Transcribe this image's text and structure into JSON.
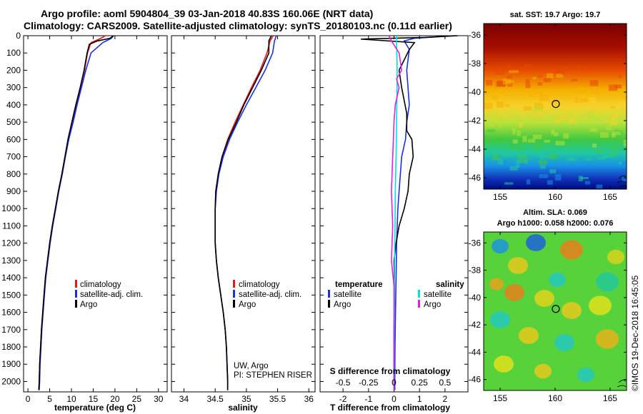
{
  "figure": {
    "title_line1": "Argo profile: aoml 5904804_39 03-Jan-2018 40.83S 160.06E (NRT data)",
    "title_line2": "Climatology: CARS2009. Satellite-adjusted climatology: synTS_20180103.nc (0.11d earlier)",
    "credit_line1": "UW, Argo",
    "credit_line2": "PI: STEPHEN RISER",
    "footer_stamp": "©IMOS 19-Dec-2018 16:45:05"
  },
  "colors": {
    "climatology": "#e81818",
    "satellite": "#1a2ee6",
    "argo": "#000000",
    "sat_salinity": "#00e0e0",
    "argo_salinity": "#e020e0"
  },
  "chart_data": [
    {
      "id": "temperature",
      "type": "line",
      "title": "",
      "xlabel": "temperature (deg C)",
      "ylabel": "",
      "xlim": [
        -1,
        32
      ],
      "ylim": [
        2060,
        0
      ],
      "x_ticks": [
        0,
        5,
        10,
        15,
        20,
        25,
        30
      ],
      "y_ticks": [
        0,
        100,
        200,
        300,
        400,
        500,
        600,
        700,
        800,
        900,
        1000,
        1100,
        1200,
        1300,
        1400,
        1500,
        1600,
        1700,
        1800,
        1900,
        2000
      ],
      "legend": [
        "climatology",
        "satellite-adj. clim.",
        "Argo"
      ],
      "series": [
        {
          "name": "climatology",
          "color_key": "climatology",
          "points": [
            [
              17.8,
              0
            ],
            [
              16.8,
              15
            ],
            [
              14.5,
              40
            ],
            [
              13.7,
              100
            ],
            [
              13.0,
              200
            ],
            [
              12.1,
              300
            ],
            [
              11.1,
              400
            ],
            [
              10.3,
              500
            ],
            [
              9.3,
              600
            ],
            [
              8.5,
              700
            ],
            [
              7.8,
              800
            ],
            [
              7.0,
              900
            ],
            [
              6.3,
              1000
            ],
            [
              5.6,
              1100
            ],
            [
              5.0,
              1200
            ],
            [
              4.5,
              1300
            ],
            [
              4.0,
              1400
            ],
            [
              3.7,
              1500
            ],
            [
              3.4,
              1600
            ],
            [
              3.1,
              1700
            ],
            [
              2.9,
              1800
            ],
            [
              2.7,
              1900
            ],
            [
              2.6,
              2000
            ],
            [
              2.5,
              2050
            ]
          ]
        },
        {
          "name": "satellite-adj. clim.",
          "color_key": "satellite",
          "points": [
            [
              19.7,
              0
            ],
            [
              19.2,
              15
            ],
            [
              17.2,
              40
            ],
            [
              14.5,
              100
            ],
            [
              13.3,
              200
            ],
            [
              12.3,
              300
            ],
            [
              11.3,
              400
            ],
            [
              10.4,
              500
            ],
            [
              9.4,
              600
            ],
            [
              8.6,
              700
            ],
            [
              7.9,
              800
            ],
            [
              7.1,
              900
            ],
            [
              6.4,
              1000
            ],
            [
              5.7,
              1100
            ],
            [
              5.1,
              1200
            ],
            [
              4.6,
              1300
            ],
            [
              4.1,
              1400
            ],
            [
              3.8,
              1500
            ],
            [
              3.5,
              1600
            ],
            [
              3.2,
              1700
            ],
            [
              3.0,
              1800
            ],
            [
              2.8,
              1900
            ],
            [
              2.7,
              2000
            ],
            [
              2.6,
              2050
            ]
          ]
        },
        {
          "name": "Argo",
          "color_key": "argo",
          "points": [
            [
              19.6,
              0
            ],
            [
              18.9,
              15
            ],
            [
              16.0,
              30
            ],
            [
              14.1,
              50
            ],
            [
              13.6,
              100
            ],
            [
              12.9,
              200
            ],
            [
              12.0,
              300
            ],
            [
              11.0,
              400
            ],
            [
              10.1,
              500
            ],
            [
              9.2,
              600
            ],
            [
              8.5,
              700
            ],
            [
              7.8,
              800
            ],
            [
              7.0,
              900
            ],
            [
              6.3,
              1000
            ],
            [
              5.6,
              1100
            ],
            [
              5.0,
              1200
            ],
            [
              4.5,
              1300
            ],
            [
              4.0,
              1400
            ],
            [
              3.7,
              1500
            ],
            [
              3.4,
              1600
            ],
            [
              3.1,
              1700
            ],
            [
              2.9,
              1800
            ],
            [
              2.7,
              1900
            ],
            [
              2.6,
              2000
            ],
            [
              2.5,
              2050
            ]
          ]
        }
      ]
    },
    {
      "id": "salinity",
      "type": "line",
      "title": "",
      "xlabel": "salinity",
      "ylabel": "",
      "xlim": [
        33.8,
        36.1
      ],
      "ylim": [
        2060,
        0
      ],
      "x_ticks": [
        34,
        34.5,
        35,
        35.5,
        36
      ],
      "legend": [
        "climatology",
        "satellite-adj. clim.",
        "Argo"
      ],
      "series": [
        {
          "name": "climatology",
          "color_key": "climatology",
          "points": [
            [
              35.43,
              0
            ],
            [
              35.38,
              30
            ],
            [
              35.33,
              100
            ],
            [
              35.22,
              200
            ],
            [
              35.08,
              300
            ],
            [
              34.95,
              400
            ],
            [
              34.82,
              500
            ],
            [
              34.7,
              600
            ],
            [
              34.61,
              700
            ],
            [
              34.55,
              800
            ],
            [
              34.51,
              900
            ],
            [
              34.5,
              1000
            ],
            [
              34.5,
              1100
            ],
            [
              34.5,
              1200
            ],
            [
              34.52,
              1300
            ],
            [
              34.55,
              1400
            ],
            [
              34.59,
              1500
            ],
            [
              34.63,
              1600
            ],
            [
              34.66,
              1700
            ],
            [
              34.68,
              1800
            ],
            [
              34.69,
              1900
            ],
            [
              34.7,
              2000
            ],
            [
              34.7,
              2050
            ]
          ]
        },
        {
          "name": "satellite-adj. clim.",
          "color_key": "satellite",
          "points": [
            [
              35.48,
              0
            ],
            [
              35.45,
              30
            ],
            [
              35.42,
              100
            ],
            [
              35.3,
              200
            ],
            [
              35.15,
              300
            ],
            [
              35.0,
              400
            ],
            [
              34.86,
              500
            ],
            [
              34.73,
              600
            ],
            [
              34.63,
              700
            ],
            [
              34.56,
              800
            ],
            [
              34.52,
              900
            ],
            [
              34.5,
              1000
            ],
            [
              34.5,
              1100
            ],
            [
              34.5,
              1200
            ],
            [
              34.52,
              1300
            ],
            [
              34.55,
              1400
            ],
            [
              34.59,
              1500
            ],
            [
              34.63,
              1600
            ],
            [
              34.66,
              1700
            ],
            [
              34.68,
              1800
            ],
            [
              34.69,
              1900
            ],
            [
              34.7,
              2000
            ],
            [
              34.7,
              2050
            ]
          ]
        },
        {
          "name": "Argo",
          "color_key": "argo",
          "points": [
            [
              35.4,
              0
            ],
            [
              35.36,
              30
            ],
            [
              35.36,
              100
            ],
            [
              35.24,
              200
            ],
            [
              35.1,
              300
            ],
            [
              34.96,
              400
            ],
            [
              34.84,
              500
            ],
            [
              34.71,
              600
            ],
            [
              34.61,
              700
            ],
            [
              34.55,
              800
            ],
            [
              34.51,
              900
            ],
            [
              34.5,
              1000
            ],
            [
              34.5,
              1100
            ],
            [
              34.5,
              1200
            ],
            [
              34.52,
              1300
            ],
            [
              34.55,
              1400
            ],
            [
              34.59,
              1500
            ],
            [
              34.63,
              1600
            ],
            [
              34.66,
              1700
            ],
            [
              34.68,
              1800
            ],
            [
              34.69,
              1900
            ],
            [
              34.7,
              2000
            ],
            [
              34.7,
              2050
            ]
          ]
        }
      ]
    },
    {
      "id": "difference",
      "type": "line",
      "title": "",
      "xlabel": "T difference from climatology",
      "xlabel_top": "S difference from climatology",
      "xlim": [
        -2.9,
        2.9
      ],
      "ylim": [
        2060,
        0
      ],
      "x_ticks": [
        -2,
        -1,
        0,
        1,
        2
      ],
      "x_ticks_top_labels": [
        "-0.5",
        "-0.25",
        "0",
        "0.25",
        "0.5"
      ],
      "legend_left_title": "temperature",
      "legend_right_title": "salinity",
      "legend": [
        "satellite",
        "Argo",
        "satellite",
        "Argo"
      ],
      "series": [
        {
          "name": "temperature satellite",
          "color_key": "satellite",
          "points": [
            [
              2.4,
              0
            ],
            [
              0.8,
              15
            ],
            [
              0.4,
              30
            ],
            [
              0.6,
              80
            ],
            [
              0.5,
              200
            ],
            [
              0.55,
              300
            ],
            [
              0.6,
              400
            ],
            [
              0.5,
              500
            ],
            [
              0.45,
              600
            ],
            [
              0.3,
              700
            ],
            [
              0.25,
              800
            ],
            [
              0.2,
              900
            ],
            [
              0.15,
              1000
            ],
            [
              0.1,
              1200
            ],
            [
              0.08,
              1400
            ],
            [
              0.06,
              1600
            ],
            [
              0.04,
              1800
            ],
            [
              0.03,
              2000
            ],
            [
              0.03,
              2050
            ]
          ]
        },
        {
          "name": "temperature Argo",
          "color_key": "argo",
          "points": [
            [
              2.5,
              0
            ],
            [
              1.2,
              10
            ],
            [
              -1.3,
              20
            ],
            [
              0.8,
              40
            ],
            [
              0.6,
              80
            ],
            [
              0.2,
              200
            ],
            [
              0.3,
              300
            ],
            [
              0.5,
              450
            ],
            [
              0.5,
              550
            ],
            [
              0.7,
              600
            ],
            [
              0.75,
              700
            ],
            [
              0.6,
              800
            ],
            [
              0.55,
              900
            ],
            [
              0.4,
              1000
            ],
            [
              0.2,
              1100
            ],
            [
              0.08,
              1200
            ],
            [
              0.0,
              1300
            ],
            [
              0.02,
              1500
            ],
            [
              0.0,
              1700
            ],
            [
              0.0,
              2000
            ],
            [
              0.0,
              2050
            ]
          ]
        },
        {
          "name": "salinity satellite",
          "color_key": "sat_salinity",
          "points": [
            [
              0.1,
              0
            ],
            [
              0.1,
              50
            ],
            [
              0.12,
              150
            ],
            [
              0.12,
              300
            ],
            [
              0.1,
              500
            ],
            [
              0.08,
              700
            ],
            [
              0.05,
              900
            ],
            [
              0.04,
              1100
            ],
            [
              0.02,
              1300
            ],
            [
              0.02,
              1500
            ],
            [
              0.01,
              1700
            ],
            [
              0.0,
              2000
            ],
            [
              0.0,
              2050
            ]
          ]
        },
        {
          "name": "salinity Argo",
          "color_key": "argo_salinity",
          "points": [
            [
              -0.2,
              0
            ],
            [
              -0.1,
              30
            ],
            [
              0.2,
              100
            ],
            [
              0.3,
              200
            ],
            [
              0.1,
              250
            ],
            [
              0.2,
              300
            ],
            [
              0.05,
              400
            ],
            [
              0.0,
              500
            ],
            [
              -0.05,
              700
            ],
            [
              -0.1,
              900
            ],
            [
              -0.05,
              1100
            ],
            [
              -0.1,
              1300
            ],
            [
              0.0,
              1450
            ],
            [
              0.0,
              1700
            ],
            [
              0.0,
              2000
            ],
            [
              0.0,
              2050
            ]
          ]
        }
      ]
    },
    {
      "id": "sst_map",
      "type": "heatmap",
      "title": "sat. SST: 19.7 Argo: 19.7",
      "xlabel": "",
      "xlim": [
        153.5,
        166.5
      ],
      "ylim": [
        -46.8,
        -35.2
      ],
      "x_ticks": [
        155,
        160,
        165
      ],
      "y_ticks": [
        -36,
        -38,
        -40,
        -42,
        -44,
        -46
      ],
      "float_position": [
        160.06,
        -40.83
      ]
    },
    {
      "id": "sla_map",
      "type": "heatmap",
      "title": "Altim. SLA: 0.069",
      "subtitle": "Argo h1000: 0.058 h2000: 0.076",
      "xlabel": "",
      "xlim": [
        153.5,
        166.5
      ],
      "ylim": [
        -46.8,
        -35.2
      ],
      "x_ticks": [
        155,
        160,
        165
      ],
      "y_ticks": [
        -36,
        -38,
        -40,
        -42,
        -44,
        -46
      ],
      "float_position": [
        160.06,
        -40.83
      ]
    }
  ]
}
